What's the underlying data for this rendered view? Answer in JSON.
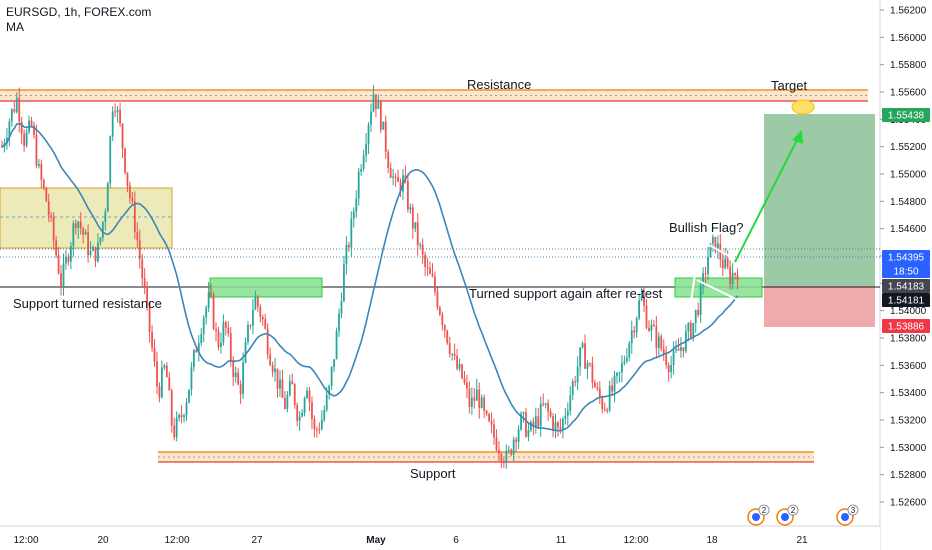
{
  "header": {
    "title": "EURSGD, 1h, FOREX.com",
    "indicator": "MA"
  },
  "colors": {
    "up": "#26a69a",
    "down": "#ef5350",
    "ma": "#3d86b8",
    "level_band": "#f57c00",
    "green_zone": "#2ecc40",
    "target_zone": "#5aa66a",
    "stop_zone": "#e57373"
  },
  "annotations": {
    "resistance": "Resistance",
    "target": "Target",
    "bullish_flag": "Bullish Flag?",
    "support_turned_resistance": "Support turned resistance",
    "turned_support": "Turned support again after re-test",
    "support": "Support"
  },
  "price_tags": [
    {
      "value": "1.55438",
      "style": "green"
    },
    {
      "value": "1.54395",
      "style": "blue"
    },
    {
      "value": "18:50",
      "style": "blue"
    },
    {
      "value": "1.54183",
      "style": "dark"
    },
    {
      "value": "1.54181",
      "style": "black"
    },
    {
      "value": "1.53886",
      "style": "red"
    }
  ],
  "event_badges": [
    "2",
    "2",
    "3"
  ],
  "chart_data": {
    "type": "candlestick",
    "y_axis_ticks": [
      "1.56200",
      "1.56000",
      "1.55800",
      "1.55600",
      "1.55400",
      "1.55200",
      "1.55000",
      "1.54800",
      "1.54600",
      "1.54400",
      "1.54200",
      "1.54000",
      "1.53800",
      "1.53600",
      "1.53400",
      "1.53200",
      "1.53000",
      "1.52800",
      "1.52600"
    ],
    "x_axis_ticks": [
      "12:00",
      "20",
      "12:00",
      "27",
      "May",
      "6",
      "11",
      "12:00",
      "18",
      "21"
    ],
    "ylim": [
      1.5255,
      1.5632
    ],
    "levels": {
      "resistance": 1.5558,
      "support": 1.5292,
      "support_turned_resistance": 1.5418,
      "current_price": 1.54395
    },
    "position": {
      "entry": 1.54183,
      "target": 1.55438,
      "stop": 1.53886
    },
    "price_path": [
      1.552,
      1.554,
      1.5555,
      1.5525,
      1.5535,
      1.55,
      1.548,
      1.545,
      1.542,
      1.5445,
      1.547,
      1.5455,
      1.544,
      1.5445,
      1.548,
      1.556,
      1.553,
      1.549,
      1.546,
      1.542,
      1.538,
      1.534,
      1.536,
      1.531,
      1.532,
      1.534,
      1.537,
      1.5395,
      1.541,
      1.5375,
      1.539,
      1.536,
      1.534,
      1.538,
      1.541,
      1.5395,
      1.537,
      1.535,
      1.533,
      1.5345,
      1.532,
      1.535,
      1.531,
      1.532,
      1.534,
      1.538,
      1.543,
      1.546,
      1.55,
      1.553,
      1.556,
      1.554,
      1.551,
      1.549,
      1.5495,
      1.547,
      1.545,
      1.543,
      1.542,
      1.54,
      1.538,
      1.536,
      1.535,
      1.533,
      1.534,
      1.532,
      1.531,
      1.53,
      1.529,
      1.531,
      1.532,
      1.531,
      1.532,
      1.533,
      1.532,
      1.531,
      1.533,
      1.535,
      1.537,
      1.536,
      1.534,
      1.533,
      1.534,
      1.535,
      1.537,
      1.539,
      1.541,
      1.539,
      1.538,
      1.537,
      1.536,
      1.537,
      1.538,
      1.539,
      1.541,
      1.544,
      1.545,
      1.5435,
      1.5425,
      1.543
    ]
  }
}
